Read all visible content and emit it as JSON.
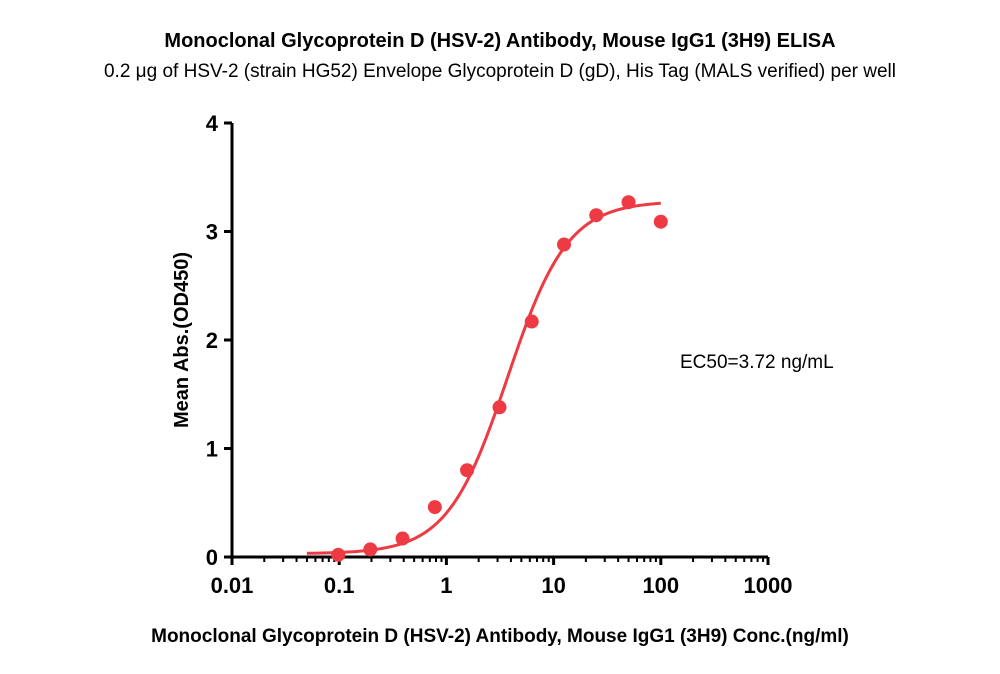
{
  "chart_data": {
    "type": "scatter",
    "title": "Monoclonal Glycoprotein D (HSV-2) Antibody, Mouse IgG1 (3H9) ELISA",
    "subtitle": "0.2 μg of HSV-2 (strain HG52) Envelope Glycoprotein D (gD), His Tag (MALS verified) per well",
    "xlabel": "Monoclonal Glycoprotein D (HSV-2) Antibody, Mouse IgG1 (3H9) Conc.(ng/ml)",
    "ylabel": "Mean Abs.(OD450)",
    "x_scale": "log",
    "xlim": [
      0.01,
      1000
    ],
    "ylim": [
      0,
      4
    ],
    "x_ticks": [
      0.01,
      0.1,
      1,
      10,
      100,
      1000
    ],
    "x_tick_labels": [
      "0.01",
      "0.1",
      "1",
      "10",
      "100",
      "1000"
    ],
    "y_ticks": [
      0,
      1,
      2,
      3,
      4
    ],
    "y_tick_labels": [
      "0",
      "1",
      "2",
      "3",
      "4"
    ],
    "grid": false,
    "annotation": "EC50=3.72 ng/mL",
    "color": "#ee3a43",
    "series": [
      {
        "points": [
          {
            "x": 0.098,
            "y": 0.02
          },
          {
            "x": 0.195,
            "y": 0.07
          },
          {
            "x": 0.39,
            "y": 0.17
          },
          {
            "x": 0.78,
            "y": 0.46
          },
          {
            "x": 1.56,
            "y": 0.8
          },
          {
            "x": 3.13,
            "y": 1.38
          },
          {
            "x": 6.25,
            "y": 2.17
          },
          {
            "x": 12.5,
            "y": 2.88
          },
          {
            "x": 25,
            "y": 3.15
          },
          {
            "x": 50,
            "y": 3.27
          },
          {
            "x": 100,
            "y": 3.09
          }
        ],
        "fit": {
          "model": "4PL",
          "bottom": 0.03,
          "top": 3.28,
          "ec50": 3.72,
          "hill": 1.55,
          "x_range": [
            0.05,
            100
          ]
        }
      }
    ]
  }
}
